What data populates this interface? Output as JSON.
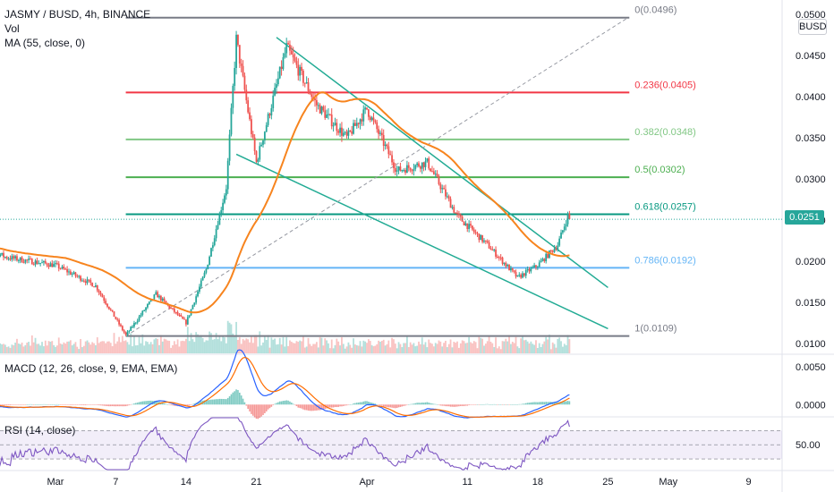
{
  "header": {
    "title": "JASMY / BUSD, 4h, BINANCE",
    "vol_label": "Vol",
    "ma_label": "MA (55, close, 0)",
    "currency_button": "BUSD",
    "last_price": "0.0251"
  },
  "colors": {
    "up": "#26a69a",
    "down": "#ef5350",
    "ma": "#f7841e",
    "macd": "#2962ff",
    "signal": "#ff6d00",
    "rsi": "#7e57c2",
    "fib_0": "#787b86",
    "fib_236": "#f23645",
    "fib_382": "#81c784",
    "fib_5": "#4caf50",
    "fib_618": "#089981",
    "fib_786": "#64b5f6",
    "fib_1": "#787b86",
    "wedge": "#22ab94"
  },
  "chart_data": [
    {
      "type": "candlestick",
      "title": "JASMY / BUSD, 4h, BINANCE",
      "ylim": [
        0.0088,
        0.0512
      ],
      "price_ticks": [
        "0.0500",
        "0.0450",
        "0.0400",
        "0.0350",
        "0.0300",
        "0.0250",
        "0.0200",
        "0.0150",
        "0.0100"
      ],
      "x_ticks": [
        "Mar",
        "7",
        "14",
        "21",
        "Apr",
        "11",
        "18",
        "25",
        "May",
        "9"
      ],
      "path_points": [
        {
          "x": "Feb 21",
          "y": 0.0223
        },
        {
          "x": "Feb 24",
          "y": 0.0205
        },
        {
          "x": "Mar 1",
          "y": 0.0195
        },
        {
          "x": "Mar 5",
          "y": 0.017
        },
        {
          "x": "Mar 8",
          "y": 0.011
        },
        {
          "x": "Mar 11",
          "y": 0.016
        },
        {
          "x": "Mar 14",
          "y": 0.0125
        },
        {
          "x": "Mar 16",
          "y": 0.019
        },
        {
          "x": "Mar 18",
          "y": 0.029
        },
        {
          "x": "Mar 19",
          "y": 0.047
        },
        {
          "x": "Mar 21",
          "y": 0.032
        },
        {
          "x": "Mar 24",
          "y": 0.046
        },
        {
          "x": "Mar 27",
          "y": 0.039
        },
        {
          "x": "Mar 30",
          "y": 0.035
        },
        {
          "x": "Apr 1",
          "y": 0.0385
        },
        {
          "x": "Apr 4",
          "y": 0.031
        },
        {
          "x": "Apr 7",
          "y": 0.032
        },
        {
          "x": "Apr 10",
          "y": 0.0255
        },
        {
          "x": "Apr 13",
          "y": 0.022
        },
        {
          "x": "Apr 16",
          "y": 0.018
        },
        {
          "x": "Apr 18",
          "y": 0.0195
        },
        {
          "x": "Apr 20",
          "y": 0.022
        },
        {
          "x": "Apr 21",
          "y": 0.0255
        }
      ],
      "ma55_label": "MA (55, close, 0)",
      "fib_levels": [
        {
          "label": "0(0.0496)",
          "ratio": 0,
          "value": 0.0496,
          "color": "#787b86"
        },
        {
          "label": "0.236(0.0405)",
          "ratio": 0.236,
          "value": 0.0405,
          "color": "#f23645"
        },
        {
          "label": "0.382(0.0348)",
          "ratio": 0.382,
          "value": 0.0348,
          "color": "#81c784"
        },
        {
          "label": "0.5(0.0302)",
          "ratio": 0.5,
          "value": 0.0302,
          "color": "#4caf50"
        },
        {
          "label": "0.618(0.0257)",
          "ratio": 0.618,
          "value": 0.0257,
          "color": "#089981"
        },
        {
          "label": "0.786(0.0192)",
          "ratio": 0.786,
          "value": 0.0192,
          "color": "#64b5f6"
        },
        {
          "label": "1(0.0109)",
          "ratio": 1,
          "value": 0.0109,
          "color": "#787b86"
        }
      ],
      "fib_range": {
        "start_date": "Mar 8",
        "end_date": "Apr 20"
      },
      "trendlines": [
        {
          "name": "wedge-upper",
          "from": {
            "x": "Mar 23",
            "y": 0.0472
          },
          "to": {
            "x": "Apr 25",
            "y": 0.0168
          }
        },
        {
          "name": "wedge-lower",
          "from": {
            "x": "Mar 19",
            "y": 0.033
          },
          "to": {
            "x": "Apr 25",
            "y": 0.0118
          }
        },
        {
          "name": "fib-diagonal",
          "from": {
            "x": "Mar 8",
            "y": 0.0109
          },
          "to": {
            "x": "Apr 27",
            "y": 0.0496
          }
        }
      ],
      "last_value": 0.0251
    },
    {
      "type": "line",
      "title": "MACD (12, 26, close, 9, EMA, EMA)",
      "ylim": [
        -0.0015,
        0.0065
      ],
      "y_ticks": [
        "0.0050",
        "0.0000"
      ]
    },
    {
      "type": "line",
      "title": "RSI (14, close)",
      "ylim": [
        15,
        88
      ],
      "y_ticks": [
        "50.00"
      ],
      "band": [
        30,
        70
      ]
    }
  ]
}
